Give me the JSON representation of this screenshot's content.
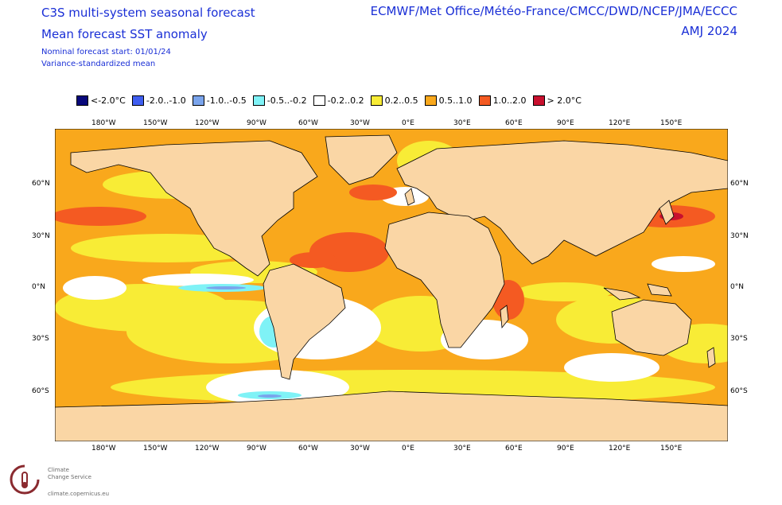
{
  "header": {
    "title_line1": "C3S multi-system seasonal forecast",
    "title_line2": "Mean forecast SST anomaly",
    "nominal_start": "Nominal forecast start: 01/01/24",
    "method": "Variance-standardized mean",
    "centres": "ECMWF/Met Office/Météo-France/CMCC/DWD/NCEP/JMA/ECCC",
    "season": "AMJ 2024"
  },
  "legend": [
    {
      "label": "<-2.0°C",
      "color": "#08087a"
    },
    {
      "label": "-2.0..-1.0",
      "color": "#3f5ef0"
    },
    {
      "label": "-1.0..-0.5",
      "color": "#7aa4ec"
    },
    {
      "label": "-0.5..-0.2",
      "color": "#7ff2f6"
    },
    {
      "label": "-0.2..0.2",
      "color": "#ffffff"
    },
    {
      "label": "0.2..0.5",
      "color": "#f8ec36"
    },
    {
      "label": "0.5..1.0",
      "color": "#f9a81c"
    },
    {
      "label": "1.0..2.0",
      "color": "#f45a22"
    },
    {
      "label": "> 2.0°C",
      "color": "#c8102e"
    }
  ],
  "axes": {
    "lon_ticks": [
      "180°W",
      "150°W",
      "120°W",
      "90°W",
      "60°W",
      "30°W",
      "0°E",
      "30°E",
      "60°E",
      "90°E",
      "120°E",
      "150°E"
    ],
    "lat_ticks": [
      "60°N",
      "30°N",
      "0°N",
      "30°S",
      "60°S"
    ]
  },
  "map": {
    "land_color": "#fad6a5",
    "warm_color": "#f9a81c",
    "mild_color": "#f8ec36"
  },
  "logo": {
    "line1": "Climate",
    "line2": "Change Service",
    "url": "climate.copernicus.eu"
  }
}
